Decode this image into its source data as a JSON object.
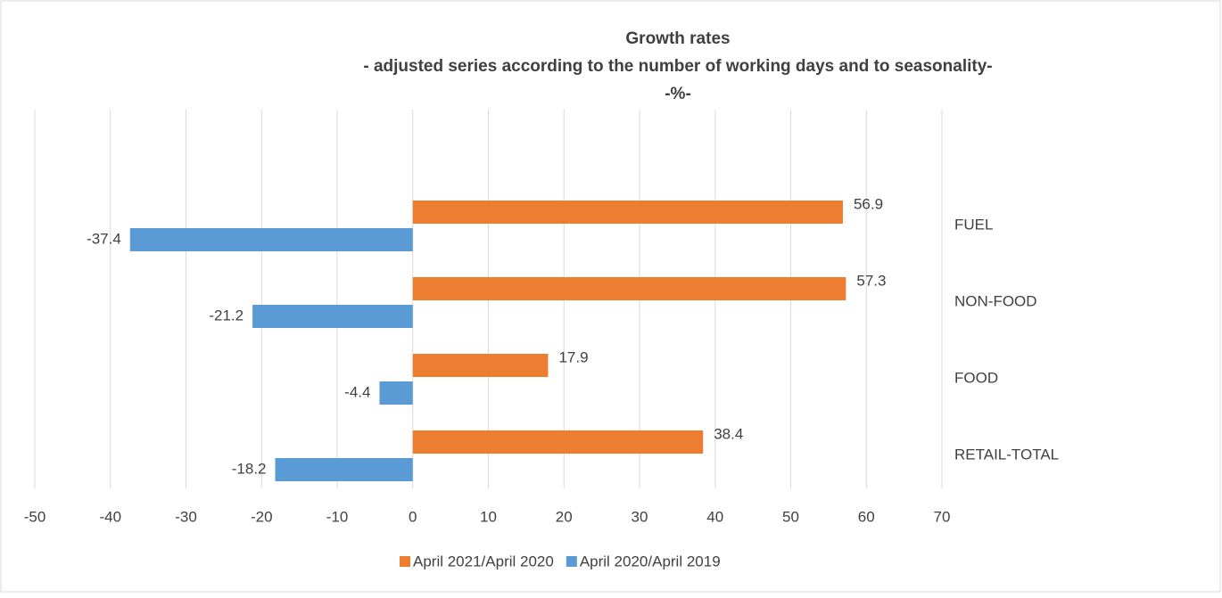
{
  "chart_data": {
    "type": "barh",
    "title": "Growth rates",
    "subtitle": "- adjusted series according to the number of working days and to seasonality-",
    "unit_label": "-%-",
    "categories": [
      "FUEL",
      "NON-FOOD",
      "FOOD",
      "RETAIL-TOTAL"
    ],
    "series": [
      {
        "name": "April 2021/April 2020",
        "color": "#ed7d31",
        "values": [
          56.9,
          57.3,
          17.9,
          38.4
        ]
      },
      {
        "name": "April 2020/April 2019",
        "color": "#5b9bd5",
        "values": [
          -37.4,
          -21.2,
          -4.4,
          -18.2
        ]
      }
    ],
    "xlim": [
      -50,
      70
    ],
    "xticks": [
      -50,
      -40,
      -30,
      -20,
      -10,
      0,
      10,
      20,
      30,
      40,
      50,
      60,
      70
    ],
    "grid": true,
    "legend": "bottom"
  }
}
